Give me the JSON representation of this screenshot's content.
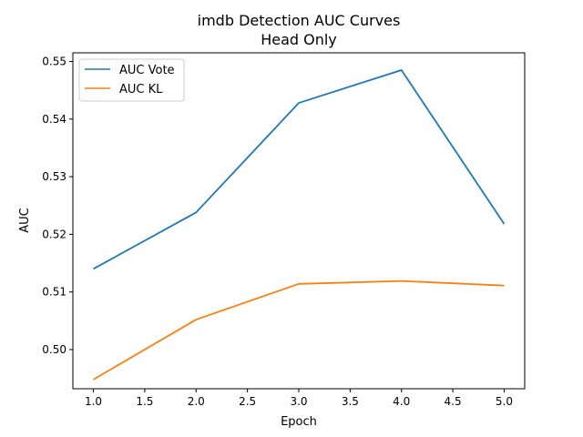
{
  "chart_data": {
    "type": "line",
    "title": "imdb Detection AUC Curves",
    "subtitle": "Head Only",
    "xlabel": "Epoch",
    "ylabel": "AUC",
    "x": [
      1.0,
      2.0,
      3.0,
      4.0,
      5.0
    ],
    "xlim": [
      0.8,
      5.2
    ],
    "ylim": [
      0.4932,
      0.5515
    ],
    "xticks": [
      1.0,
      1.5,
      2.0,
      2.5,
      3.0,
      3.5,
      4.0,
      4.5,
      5.0
    ],
    "xtick_labels": [
      "1.0",
      "1.5",
      "2.0",
      "2.5",
      "3.0",
      "3.5",
      "4.0",
      "4.5",
      "5.0"
    ],
    "yticks": [
      0.5,
      0.51,
      0.52,
      0.53,
      0.54,
      0.55
    ],
    "ytick_labels": [
      "0.50",
      "0.51",
      "0.52",
      "0.53",
      "0.54",
      "0.55"
    ],
    "grid": false,
    "legend_position": "top-left",
    "series": [
      {
        "name": "AUC Vote",
        "color": "#1f77b4",
        "values": [
          0.514,
          0.5238,
          0.5428,
          0.5485,
          0.5218
        ]
      },
      {
        "name": "AUC KL",
        "color": "#ff7f0e",
        "values": [
          0.4948,
          0.5052,
          0.5114,
          0.5119,
          0.5111
        ]
      }
    ]
  }
}
